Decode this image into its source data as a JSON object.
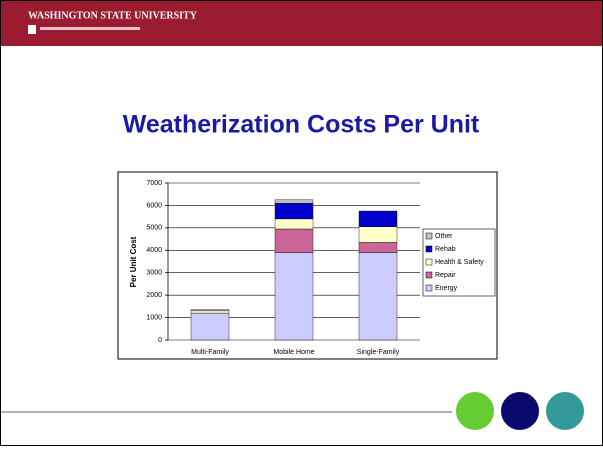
{
  "header": {
    "logo": "WASHINGTON STATE UNIVERSITY"
  },
  "chart_data": {
    "type": "stacked_bar",
    "title": "Weatherization Costs Per Unit",
    "y_label": "Per Unit Cost",
    "categories": [
      "Multi-Family",
      "Mobile Home",
      "Single-Family"
    ],
    "series": [
      {
        "name": "Energy",
        "color": "#ccccff",
        "values": [
          1200,
          3900,
          3900
        ]
      },
      {
        "name": "Repair",
        "color": "#cc6699",
        "values": [
          0,
          1050,
          450
        ]
      },
      {
        "name": "Health & Safety",
        "color": "#ffffcc",
        "values": [
          100,
          450,
          700
        ]
      },
      {
        "name": "Rehab",
        "color": "#0000cc",
        "values": [
          0,
          700,
          700
        ]
      },
      {
        "name": "Other",
        "color": "#c0c0c0",
        "values": [
          50,
          150,
          0
        ]
      }
    ],
    "ylim": [
      0,
      7000
    ],
    "yticks": [
      0,
      1000,
      2000,
      3000,
      4000,
      5000,
      6000,
      7000
    ],
    "grid": true,
    "legend": "right"
  }
}
